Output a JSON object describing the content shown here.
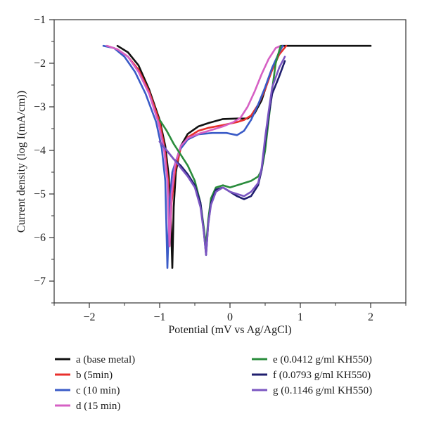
{
  "chart_data": {
    "type": "line",
    "title": "",
    "xlabel": "Potential (mV vs Ag/AgCl)",
    "ylabel": "Current density (log I(mA/cm))",
    "xlim": [
      -2.5,
      2.5
    ],
    "ylim": [
      -7.5,
      -1
    ],
    "xticks": [
      -2,
      -1,
      0,
      1,
      2
    ],
    "xtick_labels": [
      "−2",
      "−1",
      "0",
      "1",
      "2"
    ],
    "yticks": [
      -1,
      -2,
      -3,
      -4,
      -5,
      -6,
      -7
    ],
    "ytick_labels": [
      "−1",
      "−2",
      "−3",
      "−4",
      "−5",
      "−6",
      "−7"
    ],
    "grid": false,
    "legend_position": "bottom",
    "series": [
      {
        "name": "a (base metal)",
        "color": "#111111",
        "legend_col": 0,
        "legend_row": 0,
        "points": [
          [
            -1.6,
            -1.6
          ],
          [
            -1.45,
            -1.75
          ],
          [
            -1.3,
            -2.05
          ],
          [
            -1.15,
            -2.6
          ],
          [
            -1.0,
            -3.3
          ],
          [
            -0.92,
            -3.9
          ],
          [
            -0.87,
            -4.6
          ],
          [
            -0.84,
            -5.6
          ],
          [
            -0.82,
            -6.7
          ],
          [
            -0.8,
            -5.3
          ],
          [
            -0.77,
            -4.5
          ],
          [
            -0.7,
            -3.9
          ],
          [
            -0.6,
            -3.62
          ],
          [
            -0.45,
            -3.45
          ],
          [
            -0.3,
            -3.37
          ],
          [
            -0.1,
            -3.28
          ],
          [
            0.1,
            -3.27
          ],
          [
            0.25,
            -3.27
          ],
          [
            0.35,
            -3.15
          ],
          [
            0.45,
            -2.85
          ],
          [
            0.55,
            -2.35
          ],
          [
            0.65,
            -1.95
          ],
          [
            0.73,
            -1.6
          ],
          [
            1.2,
            -1.6
          ],
          [
            1.6,
            -1.6
          ],
          [
            2.0,
            -1.6
          ]
        ]
      },
      {
        "name": "b (5min)",
        "color": "#e8302c",
        "legend_col": 0,
        "legend_row": 1,
        "points": [
          [
            -1.75,
            -1.6
          ],
          [
            -1.6,
            -1.68
          ],
          [
            -1.45,
            -1.85
          ],
          [
            -1.3,
            -2.15
          ],
          [
            -1.15,
            -2.65
          ],
          [
            -1.0,
            -3.35
          ],
          [
            -0.93,
            -3.95
          ],
          [
            -0.88,
            -4.7
          ],
          [
            -0.86,
            -6.2
          ],
          [
            -0.83,
            -5.2
          ],
          [
            -0.78,
            -4.45
          ],
          [
            -0.7,
            -3.95
          ],
          [
            -0.6,
            -3.7
          ],
          [
            -0.45,
            -3.55
          ],
          [
            -0.3,
            -3.48
          ],
          [
            -0.1,
            -3.42
          ],
          [
            0.1,
            -3.35
          ],
          [
            0.2,
            -3.3
          ],
          [
            0.3,
            -3.2
          ],
          [
            0.4,
            -2.95
          ],
          [
            0.5,
            -2.6
          ],
          [
            0.6,
            -2.15
          ],
          [
            0.7,
            -1.8
          ],
          [
            0.8,
            -1.6
          ]
        ]
      },
      {
        "name": "c (10 min)",
        "color": "#3a5bc7",
        "legend_col": 0,
        "legend_row": 2,
        "points": [
          [
            -1.8,
            -1.6
          ],
          [
            -1.65,
            -1.65
          ],
          [
            -1.5,
            -1.85
          ],
          [
            -1.35,
            -2.2
          ],
          [
            -1.2,
            -2.7
          ],
          [
            -1.05,
            -3.35
          ],
          [
            -0.97,
            -3.95
          ],
          [
            -0.92,
            -4.7
          ],
          [
            -0.89,
            -6.7
          ],
          [
            -0.86,
            -5.2
          ],
          [
            -0.82,
            -4.5
          ],
          [
            -0.72,
            -4.0
          ],
          [
            -0.6,
            -3.75
          ],
          [
            -0.45,
            -3.63
          ],
          [
            -0.25,
            -3.6
          ],
          [
            -0.05,
            -3.6
          ],
          [
            0.1,
            -3.65
          ],
          [
            0.2,
            -3.55
          ],
          [
            0.3,
            -3.3
          ],
          [
            0.4,
            -2.95
          ],
          [
            0.5,
            -2.55
          ],
          [
            0.6,
            -2.1
          ],
          [
            0.7,
            -1.75
          ],
          [
            0.75,
            -1.6
          ]
        ]
      },
      {
        "name": "d (15 min)",
        "color": "#d660c4",
        "legend_col": 0,
        "legend_row": 3,
        "points": [
          [
            -1.75,
            -1.6
          ],
          [
            -1.6,
            -1.68
          ],
          [
            -1.45,
            -1.85
          ],
          [
            -1.3,
            -2.2
          ],
          [
            -1.15,
            -2.7
          ],
          [
            -1.02,
            -3.35
          ],
          [
            -0.94,
            -3.95
          ],
          [
            -0.89,
            -4.7
          ],
          [
            -0.86,
            -6.2
          ],
          [
            -0.83,
            -5.0
          ],
          [
            -0.78,
            -4.3
          ],
          [
            -0.7,
            -3.9
          ],
          [
            -0.6,
            -3.72
          ],
          [
            -0.45,
            -3.62
          ],
          [
            -0.3,
            -3.55
          ],
          [
            -0.1,
            -3.45
          ],
          [
            0.05,
            -3.35
          ],
          [
            0.15,
            -3.25
          ],
          [
            0.25,
            -3.0
          ],
          [
            0.35,
            -2.65
          ],
          [
            0.45,
            -2.25
          ],
          [
            0.55,
            -1.9
          ],
          [
            0.65,
            -1.65
          ],
          [
            0.72,
            -1.6
          ]
        ]
      },
      {
        "name": "e (0.0412 g/ml KH550)",
        "color": "#2a8c3c",
        "legend_col": 1,
        "legend_row": 0,
        "points": [
          [
            -1.0,
            -3.3
          ],
          [
            -0.9,
            -3.55
          ],
          [
            -0.8,
            -3.85
          ],
          [
            -0.7,
            -4.1
          ],
          [
            -0.6,
            -4.35
          ],
          [
            -0.5,
            -4.7
          ],
          [
            -0.42,
            -5.2
          ],
          [
            -0.37,
            -5.8
          ],
          [
            -0.34,
            -6.2
          ],
          [
            -0.31,
            -5.6
          ],
          [
            -0.27,
            -5.1
          ],
          [
            -0.2,
            -4.85
          ],
          [
            -0.1,
            -4.8
          ],
          [
            0.0,
            -4.85
          ],
          [
            0.1,
            -4.8
          ],
          [
            0.2,
            -4.75
          ],
          [
            0.3,
            -4.7
          ],
          [
            0.4,
            -4.6
          ],
          [
            0.45,
            -4.45
          ],
          [
            0.5,
            -4.0
          ],
          [
            0.55,
            -3.3
          ],
          [
            0.6,
            -2.6
          ],
          [
            0.65,
            -2.0
          ],
          [
            0.72,
            -1.6
          ]
        ]
      },
      {
        "name": "f (0.0793 g/ml KH550)",
        "color": "#1f1e6e",
        "legend_col": 1,
        "legend_row": 1,
        "points": [
          [
            -1.0,
            -3.8
          ],
          [
            -0.9,
            -4.0
          ],
          [
            -0.8,
            -4.2
          ],
          [
            -0.7,
            -4.35
          ],
          [
            -0.6,
            -4.55
          ],
          [
            -0.5,
            -4.8
          ],
          [
            -0.42,
            -5.2
          ],
          [
            -0.37,
            -5.9
          ],
          [
            -0.34,
            -6.4
          ],
          [
            -0.31,
            -5.7
          ],
          [
            -0.27,
            -5.2
          ],
          [
            -0.2,
            -4.9
          ],
          [
            -0.1,
            -4.85
          ],
          [
            0.0,
            -4.95
          ],
          [
            0.1,
            -5.05
          ],
          [
            0.2,
            -5.12
          ],
          [
            0.3,
            -5.05
          ],
          [
            0.4,
            -4.8
          ],
          [
            0.45,
            -4.45
          ],
          [
            0.5,
            -3.8
          ],
          [
            0.55,
            -3.2
          ],
          [
            0.6,
            -2.7
          ],
          [
            0.7,
            -2.3
          ],
          [
            0.78,
            -1.95
          ]
        ]
      },
      {
        "name": "g (0.1146 g/ml KH550)",
        "color": "#7b56c2",
        "legend_col": 1,
        "legend_row": 2,
        "points": [
          [
            -1.0,
            -3.8
          ],
          [
            -0.9,
            -4.0
          ],
          [
            -0.8,
            -4.2
          ],
          [
            -0.7,
            -4.4
          ],
          [
            -0.6,
            -4.6
          ],
          [
            -0.5,
            -4.85
          ],
          [
            -0.42,
            -5.3
          ],
          [
            -0.37,
            -5.9
          ],
          [
            -0.34,
            -6.4
          ],
          [
            -0.31,
            -5.7
          ],
          [
            -0.27,
            -5.25
          ],
          [
            -0.2,
            -4.95
          ],
          [
            -0.1,
            -4.85
          ],
          [
            0.0,
            -4.95
          ],
          [
            0.1,
            -5.0
          ],
          [
            0.2,
            -5.05
          ],
          [
            0.3,
            -4.95
          ],
          [
            0.4,
            -4.75
          ],
          [
            0.45,
            -4.4
          ],
          [
            0.5,
            -3.7
          ],
          [
            0.55,
            -3.1
          ],
          [
            0.6,
            -2.55
          ],
          [
            0.7,
            -2.1
          ],
          [
            0.78,
            -1.85
          ]
        ]
      }
    ]
  }
}
